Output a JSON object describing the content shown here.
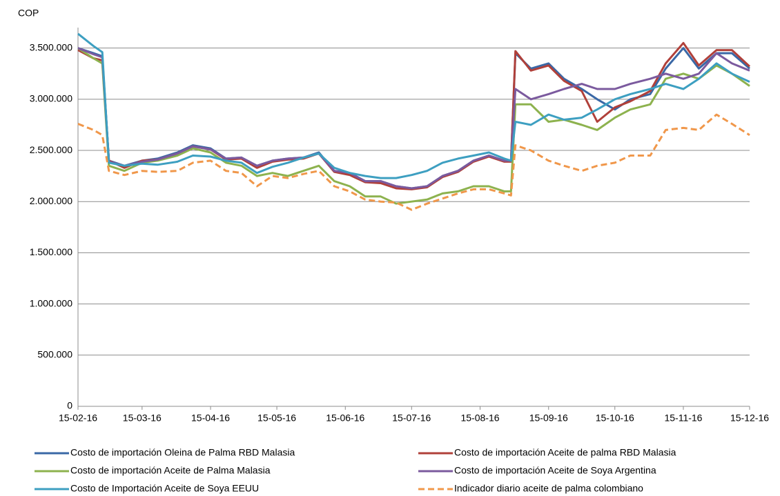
{
  "chart_data": {
    "type": "line",
    "ylabel": "COP",
    "x": [
      "2016-02-15",
      "2016-02-22",
      "2016-02-26",
      "2016-02-29",
      "2016-03-07",
      "2016-03-15",
      "2016-03-22",
      "2016-03-31",
      "2016-04-07",
      "2016-04-15",
      "2016-04-22",
      "2016-04-29",
      "2016-05-06",
      "2016-05-13",
      "2016-05-20",
      "2016-05-27",
      "2016-06-03",
      "2016-06-10",
      "2016-06-17",
      "2016-06-24",
      "2016-07-01",
      "2016-07-08",
      "2016-07-15",
      "2016-07-22",
      "2016-07-29",
      "2016-08-05",
      "2016-08-12",
      "2016-08-19",
      "2016-08-26",
      "2016-08-29",
      "2016-08-31",
      "2016-09-07",
      "2016-09-15",
      "2016-09-22",
      "2016-09-30",
      "2016-10-07",
      "2016-10-15",
      "2016-10-22",
      "2016-10-31",
      "2016-11-07",
      "2016-11-15",
      "2016-11-22",
      "2016-11-30",
      "2016-12-07",
      "2016-12-15"
    ],
    "xlim": [
      "2016-02-15",
      "2016-12-15"
    ],
    "xticks": [
      {
        "value": "2016-02-15",
        "label": "15-02-16"
      },
      {
        "value": "2016-03-15",
        "label": "15-03-16"
      },
      {
        "value": "2016-04-15",
        "label": "15-04-16"
      },
      {
        "value": "2016-05-15",
        "label": "15-05-16"
      },
      {
        "value": "2016-06-15",
        "label": "15-06-16"
      },
      {
        "value": "2016-07-15",
        "label": "15-07-16"
      },
      {
        "value": "2016-08-15",
        "label": "15-08-16"
      },
      {
        "value": "2016-09-15",
        "label": "15-09-16"
      },
      {
        "value": "2016-10-15",
        "label": "15-10-16"
      },
      {
        "value": "2016-11-15",
        "label": "15-11-16"
      },
      {
        "value": "2016-12-15",
        "label": "15-12-16"
      }
    ],
    "ylim": [
      0,
      3700000
    ],
    "yticks": [
      0,
      {
        "value": 500000,
        "label": "500.000"
      },
      {
        "value": 1000000,
        "label": "1.000.000"
      },
      {
        "value": 1500000,
        "label": "1.500.000"
      },
      {
        "value": 2000000,
        "label": "2.000.000"
      },
      {
        "value": 2500000,
        "label": "2.500.000"
      },
      {
        "value": 3000000,
        "label": "3.000.000"
      },
      {
        "value": 3500000,
        "label": "3.500.000"
      }
    ],
    "grid": true,
    "legend": "bottom",
    "series": [
      {
        "name": "Costo de importación Oleina de Palma RBD  Malasia",
        "color": "#3a68a6",
        "dash": false,
        "values": [
          3500000,
          3450000,
          3420000,
          2400000,
          2350000,
          2400000,
          2420000,
          2480000,
          2550000,
          2520000,
          2420000,
          2430000,
          2350000,
          2400000,
          2420000,
          2430000,
          2480000,
          2300000,
          2280000,
          2200000,
          2200000,
          2150000,
          2130000,
          2150000,
          2250000,
          2300000,
          2400000,
          2450000,
          2400000,
          2400000,
          3450000,
          3300000,
          3350000,
          3200000,
          3100000,
          3000000,
          2900000,
          3000000,
          3050000,
          3300000,
          3500000,
          3300000,
          3450000,
          3450000,
          3300000
        ]
      },
      {
        "name": "Costo de importación Aceite de palma RBD Malasia",
        "color": "#b0403a",
        "dash": false,
        "values": [
          3480000,
          3400000,
          3380000,
          2400000,
          2330000,
          2400000,
          2410000,
          2470000,
          2540000,
          2510000,
          2410000,
          2420000,
          2330000,
          2390000,
          2410000,
          2420000,
          2470000,
          2290000,
          2260000,
          2190000,
          2180000,
          2130000,
          2120000,
          2140000,
          2240000,
          2290000,
          2390000,
          2440000,
          2390000,
          2390000,
          3470000,
          3280000,
          3330000,
          3180000,
          3080000,
          2780000,
          2920000,
          2980000,
          3080000,
          3350000,
          3550000,
          3330000,
          3480000,
          3480000,
          3320000
        ]
      },
      {
        "name": "Costo de importación Aceite de Palma Malasia",
        "color": "#8db24e",
        "dash": false,
        "values": [
          3500000,
          3400000,
          3350000,
          2350000,
          2300000,
          2380000,
          2400000,
          2450000,
          2520000,
          2480000,
          2380000,
          2350000,
          2250000,
          2280000,
          2250000,
          2300000,
          2350000,
          2200000,
          2150000,
          2050000,
          2050000,
          1980000,
          2000000,
          2020000,
          2080000,
          2100000,
          2150000,
          2150000,
          2100000,
          2100000,
          2950000,
          2950000,
          2780000,
          2800000,
          2750000,
          2700000,
          2820000,
          2900000,
          2950000,
          3200000,
          3250000,
          3200000,
          3330000,
          3250000,
          3130000
        ]
      },
      {
        "name": "Costo de importación Aceite de Soya Argentina",
        "color": "#7b5a9e",
        "dash": false,
        "values": [
          3500000,
          3440000,
          3410000,
          2390000,
          2350000,
          2390000,
          2410000,
          2470000,
          2540000,
          2510000,
          2420000,
          2430000,
          2350000,
          2400000,
          2420000,
          2430000,
          2470000,
          2300000,
          2280000,
          2200000,
          2200000,
          2150000,
          2130000,
          2150000,
          2250000,
          2300000,
          2400000,
          2450000,
          2400000,
          2400000,
          3100000,
          3000000,
          3050000,
          3100000,
          3150000,
          3100000,
          3100000,
          3150000,
          3200000,
          3250000,
          3200000,
          3250000,
          3450000,
          3350000,
          3280000
        ]
      },
      {
        "name": "Costo de Importación Aceite de Soya  EEUU",
        "color": "#3d9fc1",
        "dash": false,
        "values": [
          3640000,
          3520000,
          3460000,
          2380000,
          2350000,
          2370000,
          2360000,
          2390000,
          2450000,
          2440000,
          2400000,
          2380000,
          2280000,
          2340000,
          2380000,
          2430000,
          2470000,
          2330000,
          2280000,
          2250000,
          2230000,
          2230000,
          2260000,
          2300000,
          2380000,
          2420000,
          2450000,
          2480000,
          2420000,
          2400000,
          2780000,
          2750000,
          2850000,
          2800000,
          2820000,
          2900000,
          3000000,
          3050000,
          3100000,
          3150000,
          3100000,
          3200000,
          3350000,
          3250000,
          3170000
        ]
      },
      {
        "name": "Indicador diario aceite de palma colombiano",
        "color": "#f0974a",
        "dash": true,
        "values": [
          2760000,
          2700000,
          2650000,
          2300000,
          2260000,
          2300000,
          2290000,
          2300000,
          2380000,
          2400000,
          2300000,
          2280000,
          2150000,
          2250000,
          2230000,
          2270000,
          2300000,
          2150000,
          2100000,
          2020000,
          2000000,
          1990000,
          1920000,
          1980000,
          2030000,
          2080000,
          2120000,
          2120000,
          2080000,
          2060000,
          2550000,
          2500000,
          2400000,
          2350000,
          2300000,
          2350000,
          2380000,
          2450000,
          2450000,
          2700000,
          2720000,
          2700000,
          2850000,
          2760000,
          2650000
        ]
      }
    ]
  }
}
